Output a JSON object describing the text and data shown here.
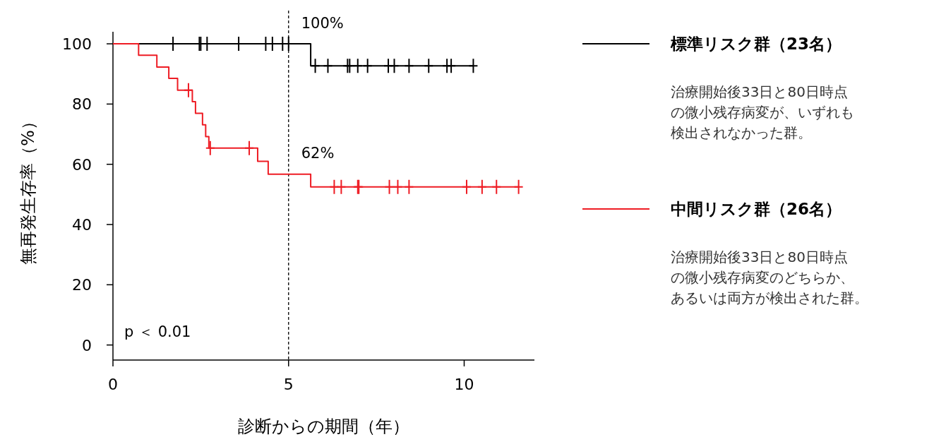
{
  "chart_data": {
    "type": "step",
    "xlabel": "診断からの期間（年）",
    "ylabel": "無再発生存率（%）",
    "xlim": [
      0,
      12
    ],
    "ylim": [
      -5,
      104
    ],
    "xticks": [
      0,
      5,
      10
    ],
    "yticks": [
      0,
      20,
      40,
      60,
      80,
      100
    ],
    "legend": "right",
    "grid": false,
    "series": [
      {
        "name": "標準リスク群（23名）",
        "color": "#000000",
        "x": [
          0,
          5.63,
          10.26
        ],
        "values": [
          100,
          92.7,
          92.7
        ]
      },
      {
        "name": "中間リスク群（26名）",
        "color": "#ee1c24",
        "x": [
          0,
          0.73,
          1.25,
          1.59,
          1.84,
          2.26,
          2.35,
          2.55,
          2.64,
          2.73,
          4.12,
          4.42,
          5.63,
          11.55
        ],
        "values": [
          100,
          96.2,
          92.3,
          88.5,
          84.6,
          80.8,
          76.9,
          73.1,
          69.2,
          65.4,
          61.0,
          56.7,
          52.5,
          52.5
        ]
      },
      {
        "type": "scatter",
        "marker": "cross",
        "color": "#000000",
        "x": [
          1.71,
          2.46,
          2.5,
          2.68,
          3.58,
          4.35,
          4.54,
          4.83,
          5.0,
          5.76,
          6.12,
          6.68,
          6.74,
          6.97,
          7.25,
          7.84,
          8.01,
          8.43,
          8.99,
          9.51,
          9.63,
          10.26
        ],
        "values": [
          100,
          100,
          100,
          100,
          100,
          100,
          100,
          100,
          100,
          92.7,
          92.7,
          92.7,
          92.7,
          92.7,
          92.7,
          92.7,
          92.7,
          92.7,
          92.7,
          92.7,
          92.7,
          92.7
        ]
      },
      {
        "type": "scatter",
        "marker": "cross",
        "color": "#ee1c24",
        "x": [
          2.15,
          2.77,
          3.88,
          6.3,
          6.5,
          6.97,
          7.0,
          7.87,
          8.11,
          8.43,
          10.07,
          10.51,
          10.92,
          11.55
        ],
        "values": [
          84.6,
          65.4,
          65.4,
          52.5,
          52.5,
          52.5,
          52.5,
          52.5,
          52.5,
          52.5,
          52.5,
          52.5,
          52.5,
          52.5
        ]
      }
    ],
    "ref_lines": [
      {
        "axis": "x",
        "value": 5,
        "line_style": "dashed",
        "color": "#000000"
      }
    ],
    "annotations": [
      {
        "text": "100%",
        "x": 5
      },
      {
        "text": "62%",
        "x": 5
      },
      "p ＜ 0.01",
      "治療開始後33日と80日時点",
      "の微小残存病変が、いずれも",
      "検出されなかった群。",
      "治療開始後33日と80日時点",
      "の微小残存病変のどちらか、",
      "あるいは両方が検出された群。"
    ]
  }
}
